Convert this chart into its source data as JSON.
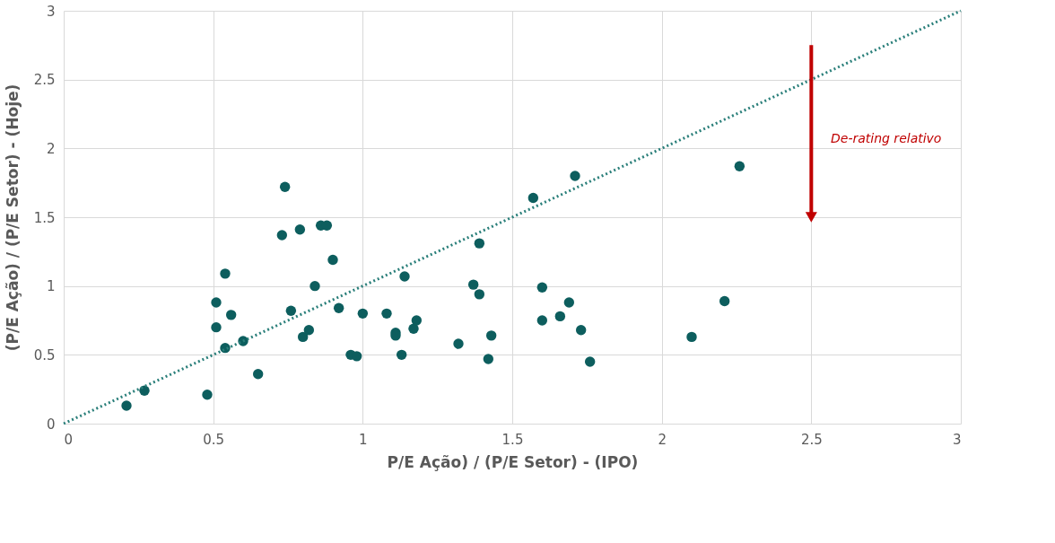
{
  "chart_data": {
    "type": "scatter",
    "xlabel": "P/E Ação)  / (P/E Setor) - (IPO)",
    "ylabel": "(P/E Ação)  / (P/E Setor) - (Hoje)",
    "xlim": [
      0,
      3
    ],
    "ylim": [
      0,
      3
    ],
    "xticks": [
      0,
      0.5,
      1,
      1.5,
      2,
      2.5,
      3
    ],
    "yticks": [
      0,
      0.5,
      1,
      1.5,
      2,
      2.5,
      3
    ],
    "grid": true,
    "marker": "circle",
    "series": [
      {
        "color": "#0d5e5e",
        "x": [
          0.21,
          0.27,
          0.48,
          0.51,
          0.51,
          0.54,
          0.54,
          0.56,
          0.6,
          0.65,
          0.73,
          0.74,
          0.76,
          0.79,
          0.8,
          0.82,
          0.84,
          0.86,
          0.88,
          0.9,
          0.92,
          0.96,
          0.98,
          1.0,
          1.08,
          1.11,
          1.11,
          1.13,
          1.14,
          1.17,
          1.18,
          1.32,
          1.37,
          1.39,
          1.39,
          1.42,
          1.43,
          1.57,
          1.6,
          1.6,
          1.66,
          1.69,
          1.71,
          1.73,
          1.76,
          2.1,
          2.21,
          2.26
        ],
        "values": [
          0.13,
          0.24,
          0.21,
          0.88,
          0.7,
          0.55,
          1.09,
          0.79,
          0.6,
          0.36,
          1.37,
          1.72,
          0.82,
          1.41,
          0.63,
          0.68,
          1.0,
          1.44,
          1.44,
          1.19,
          0.84,
          0.5,
          0.49,
          0.8,
          0.8,
          0.66,
          0.64,
          0.5,
          1.07,
          0.69,
          0.75,
          0.58,
          1.01,
          0.94,
          1.31,
          0.47,
          0.64,
          1.64,
          0.75,
          0.99,
          0.78,
          0.88,
          1.8,
          0.68,
          0.45,
          0.63,
          0.89,
          1.87
        ]
      },
      {
        "type": "line",
        "color": "#2a7f7a",
        "line_style": "dotted",
        "marker": "none",
        "x": [
          0,
          3
        ],
        "values": [
          0,
          3
        ]
      },
      {
        "type": "line",
        "color": "#c00000",
        "line_style": "solid",
        "marker": "triangle",
        "x": [
          2.5,
          2.5
        ],
        "values": [
          2.75,
          1.5
        ]
      }
    ],
    "annotations": [
      "De-rating relativo"
    ]
  }
}
